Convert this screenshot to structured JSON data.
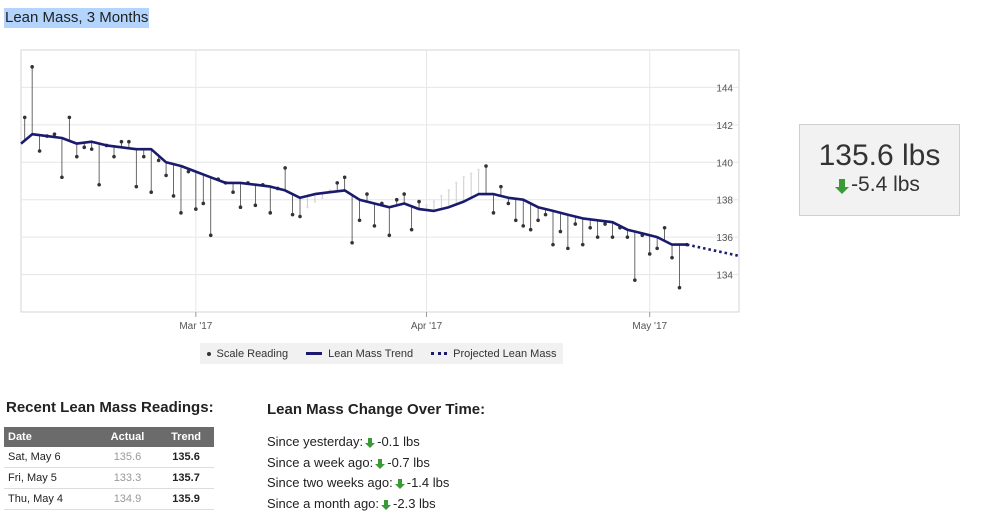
{
  "page": {
    "title": "Lean Mass, 3 Months"
  },
  "chart_data": {
    "type": "line",
    "title": "Lean Mass, 3 Months",
    "x_tick_labels": [
      "Mar '17",
      "Apr '17",
      "May '17"
    ],
    "x_tick_days": [
      28,
      59,
      89
    ],
    "y_ticks": [
      134,
      136,
      138,
      140,
      142,
      144
    ],
    "ylim": [
      132,
      146
    ],
    "xlim": [
      4.5,
      101
    ],
    "y_axis_side": "right",
    "grid": true,
    "legend": {
      "placement": "bottom",
      "entries": [
        "Scale Reading",
        "Lean Mass Trend",
        "Projected Lean Mass"
      ]
    },
    "colors": {
      "trend": "#1a1a6e",
      "reading": "#333333",
      "missing_line": "#cccccc"
    },
    "trend": [
      {
        "x": 4.5,
        "y": 141.0
      },
      {
        "x": 6,
        "y": 141.5
      },
      {
        "x": 8,
        "y": 141.4
      },
      {
        "x": 10,
        "y": 141.3
      },
      {
        "x": 12,
        "y": 141.0
      },
      {
        "x": 14,
        "y": 141.1
      },
      {
        "x": 16,
        "y": 140.9
      },
      {
        "x": 18,
        "y": 140.8
      },
      {
        "x": 20,
        "y": 140.7
      },
      {
        "x": 22,
        "y": 140.7
      },
      {
        "x": 24,
        "y": 140.0
      },
      {
        "x": 26,
        "y": 139.8
      },
      {
        "x": 28,
        "y": 139.5
      },
      {
        "x": 30,
        "y": 139.2
      },
      {
        "x": 32,
        "y": 138.9
      },
      {
        "x": 34,
        "y": 138.9
      },
      {
        "x": 36,
        "y": 138.8
      },
      {
        "x": 38,
        "y": 138.7
      },
      {
        "x": 40,
        "y": 138.5
      },
      {
        "x": 42,
        "y": 138.1
      },
      {
        "x": 44,
        "y": 138.3
      },
      {
        "x": 46,
        "y": 138.4
      },
      {
        "x": 48,
        "y": 138.5
      },
      {
        "x": 50,
        "y": 138.0
      },
      {
        "x": 52,
        "y": 137.8
      },
      {
        "x": 54,
        "y": 137.6
      },
      {
        "x": 56,
        "y": 137.8
      },
      {
        "x": 58,
        "y": 137.5
      },
      {
        "x": 60,
        "y": 137.4
      },
      {
        "x": 62,
        "y": 137.6
      },
      {
        "x": 64,
        "y": 137.9
      },
      {
        "x": 66,
        "y": 138.3
      },
      {
        "x": 68,
        "y": 138.3
      },
      {
        "x": 70,
        "y": 138.1
      },
      {
        "x": 72,
        "y": 138.0
      },
      {
        "x": 74,
        "y": 137.6
      },
      {
        "x": 76,
        "y": 137.4
      },
      {
        "x": 78,
        "y": 137.2
      },
      {
        "x": 80,
        "y": 137.0
      },
      {
        "x": 82,
        "y": 136.9
      },
      {
        "x": 84,
        "y": 136.8
      },
      {
        "x": 86,
        "y": 136.4
      },
      {
        "x": 88,
        "y": 136.2
      },
      {
        "x": 90,
        "y": 136.0
      },
      {
        "x": 92,
        "y": 135.6
      },
      {
        "x": 94,
        "y": 135.6
      }
    ],
    "projected": [
      {
        "x": 94,
        "y": 135.6
      },
      {
        "x": 101,
        "y": 135.0
      }
    ],
    "readings": [
      {
        "x": 5,
        "y": 142.4
      },
      {
        "x": 6,
        "y": 145.1
      },
      {
        "x": 7,
        "y": 140.6
      },
      {
        "x": 8,
        "y": 141.4
      },
      {
        "x": 9,
        "y": 141.5
      },
      {
        "x": 10,
        "y": 139.2
      },
      {
        "x": 11,
        "y": 142.4
      },
      {
        "x": 12,
        "y": 140.3
      },
      {
        "x": 13,
        "y": 140.8
      },
      {
        "x": 14,
        "y": 140.7
      },
      {
        "x": 15,
        "y": 138.8
      },
      {
        "x": 16,
        "y": 140.9
      },
      {
        "x": 17,
        "y": 140.3
      },
      {
        "x": 18,
        "y": 141.1
      },
      {
        "x": 19,
        "y": 141.1
      },
      {
        "x": 20,
        "y": 138.7
      },
      {
        "x": 21,
        "y": 140.3
      },
      {
        "x": 22,
        "y": 138.4
      },
      {
        "x": 23,
        "y": 140.1
      },
      {
        "x": 24,
        "y": 139.3
      },
      {
        "x": 25,
        "y": 138.2
      },
      {
        "x": 26,
        "y": 137.3
      },
      {
        "x": 27,
        "y": 139.5
      },
      {
        "x": 28,
        "y": 137.5
      },
      {
        "x": 29,
        "y": 137.8
      },
      {
        "x": 30,
        "y": 136.1
      },
      {
        "x": 31,
        "y": 139.1
      },
      {
        "x": 32,
        "y": 138.9
      },
      {
        "x": 33,
        "y": 138.4
      },
      {
        "x": 34,
        "y": 137.6
      },
      {
        "x": 35,
        "y": 138.9
      },
      {
        "x": 36,
        "y": 137.7
      },
      {
        "x": 37,
        "y": 138.8
      },
      {
        "x": 38,
        "y": 137.3
      },
      {
        "x": 39,
        "y": 138.6
      },
      {
        "x": 40,
        "y": 139.7
      },
      {
        "x": 41,
        "y": 137.2
      },
      {
        "x": 42,
        "y": 137.1
      },
      {
        "x": 47,
        "y": 138.9
      },
      {
        "x": 48,
        "y": 139.2
      },
      {
        "x": 49,
        "y": 135.7
      },
      {
        "x": 50,
        "y": 136.9
      },
      {
        "x": 51,
        "y": 138.3
      },
      {
        "x": 52,
        "y": 136.6
      },
      {
        "x": 53,
        "y": 137.8
      },
      {
        "x": 54,
        "y": 136.1
      },
      {
        "x": 55,
        "y": 138.0
      },
      {
        "x": 56,
        "y": 138.3
      },
      {
        "x": 57,
        "y": 136.4
      },
      {
        "x": 58,
        "y": 137.9
      },
      {
        "x": 67,
        "y": 139.8
      },
      {
        "x": 68,
        "y": 137.3
      },
      {
        "x": 69,
        "y": 138.7
      },
      {
        "x": 70,
        "y": 137.8
      },
      {
        "x": 71,
        "y": 136.9
      },
      {
        "x": 72,
        "y": 136.6
      },
      {
        "x": 73,
        "y": 136.4
      },
      {
        "x": 74,
        "y": 136.9
      },
      {
        "x": 75,
        "y": 137.2
      },
      {
        "x": 76,
        "y": 135.6
      },
      {
        "x": 77,
        "y": 136.3
      },
      {
        "x": 78,
        "y": 135.4
      },
      {
        "x": 79,
        "y": 136.7
      },
      {
        "x": 80,
        "y": 135.6
      },
      {
        "x": 81,
        "y": 136.5
      },
      {
        "x": 82,
        "y": 136.0
      },
      {
        "x": 83,
        "y": 136.7
      },
      {
        "x": 84,
        "y": 136.0
      },
      {
        "x": 85,
        "y": 136.5
      },
      {
        "x": 86,
        "y": 136.0
      },
      {
        "x": 87,
        "y": 133.7
      },
      {
        "x": 88,
        "y": 136.1
      },
      {
        "x": 89,
        "y": 135.1
      },
      {
        "x": 90,
        "y": 135.4
      },
      {
        "x": 91,
        "y": 136.5
      },
      {
        "x": 92,
        "y": 134.9
      },
      {
        "x": 93,
        "y": 133.3
      },
      {
        "x": 94,
        "y": 135.6
      }
    ],
    "missing_days": [
      {
        "x": 43,
        "y1": 138.2,
        "y2": 137.6
      },
      {
        "x": 44,
        "y1": 138.3,
        "y2": 137.9
      },
      {
        "x": 45,
        "y1": 138.4,
        "y2": 138.1
      },
      {
        "x": 46,
        "y1": 138.4,
        "y2": 138.5
      },
      {
        "x": 59,
        "y1": 137.5,
        "y2": 137.7
      },
      {
        "x": 60,
        "y1": 137.4,
        "y2": 137.9
      },
      {
        "x": 61,
        "y1": 137.5,
        "y2": 138.2
      },
      {
        "x": 62,
        "y1": 137.6,
        "y2": 138.5
      },
      {
        "x": 63,
        "y1": 137.8,
        "y2": 138.9
      },
      {
        "x": 64,
        "y1": 137.9,
        "y2": 139.2
      },
      {
        "x": 65,
        "y1": 138.1,
        "y2": 139.4
      },
      {
        "x": 66,
        "y1": 138.3,
        "y2": 139.6
      }
    ]
  },
  "legend": {
    "scale_reading": "Scale Reading",
    "trend": "Lean Mass Trend",
    "projected": "Projected Lean Mass"
  },
  "summary": {
    "current": "135.6 lbs",
    "change": "-5.4 lbs"
  },
  "recent": {
    "title": "Recent Lean Mass Readings:",
    "headers": {
      "date": "Date",
      "actual": "Actual",
      "trend": "Trend"
    },
    "rows": [
      {
        "date": "Sat, May 6",
        "actual": "135.6",
        "trend": "135.6"
      },
      {
        "date": "Fri, May 5",
        "actual": "133.3",
        "trend": "135.7"
      },
      {
        "date": "Thu, May 4",
        "actual": "134.9",
        "trend": "135.9"
      }
    ]
  },
  "change": {
    "title": "Lean Mass Change Over Time:",
    "items": [
      {
        "label": "Since yesterday:",
        "value": "-0.1 lbs"
      },
      {
        "label": "Since a week ago:",
        "value": "-0.7 lbs"
      },
      {
        "label": "Since two weeks ago:",
        "value": "-1.4 lbs"
      },
      {
        "label": "Since a month ago:",
        "value": "-2.3 lbs"
      }
    ]
  }
}
